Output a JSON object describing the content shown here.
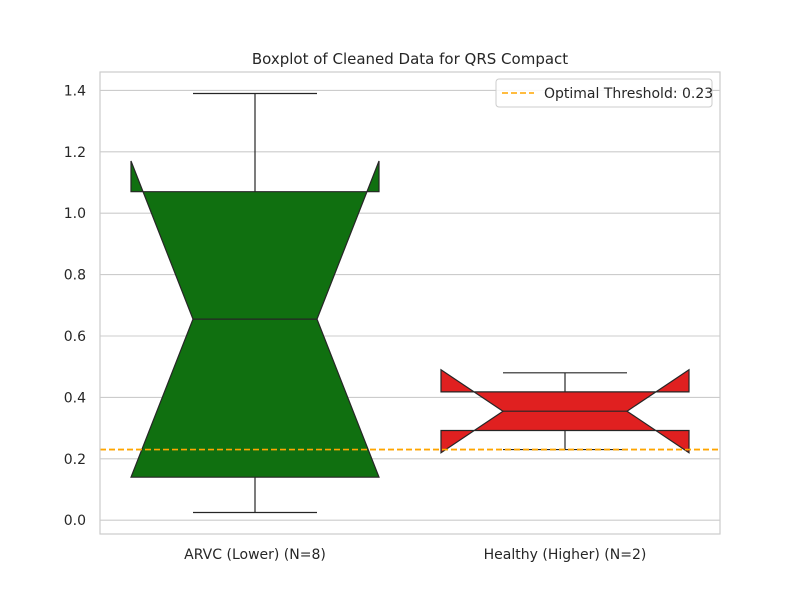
{
  "chart_data": {
    "type": "boxplot",
    "title": "Boxplot of Cleaned Data for QRS Compact",
    "xlabel": "",
    "ylabel": "",
    "ylim": [
      -0.045,
      1.46
    ],
    "yticks": [
      0.0,
      0.2,
      0.4,
      0.6,
      0.8,
      1.0,
      1.2,
      1.4
    ],
    "ytick_labels": [
      "0.0",
      "0.2",
      "0.4",
      "0.6",
      "0.8",
      "1.0",
      "1.2",
      "1.4"
    ],
    "grid": true,
    "notched": true,
    "categories": [
      "ARVC (Lower) (N=8)",
      "Healthy (Higher) (N=2)"
    ],
    "boxes": [
      {
        "category": "ARVC (Lower) (N=8)",
        "color": "#107010",
        "whisker_low": 0.025,
        "q1": 0.14,
        "median": 0.655,
        "q3": 1.07,
        "whisker_high": 1.39,
        "notch_low": 0.14,
        "notch_high": 1.17
      },
      {
        "category": "Healthy (Higher) (N=2)",
        "color": "#e02020",
        "whisker_low": 0.23,
        "q1": 0.292,
        "median": 0.355,
        "q3": 0.418,
        "whisker_high": 0.48,
        "notch_low": 0.22,
        "notch_high": 0.49
      }
    ],
    "threshold": {
      "value": 0.23,
      "label": "Optimal Threshold: 0.23",
      "color": "#ffa500"
    },
    "legend_position": "top-right"
  }
}
